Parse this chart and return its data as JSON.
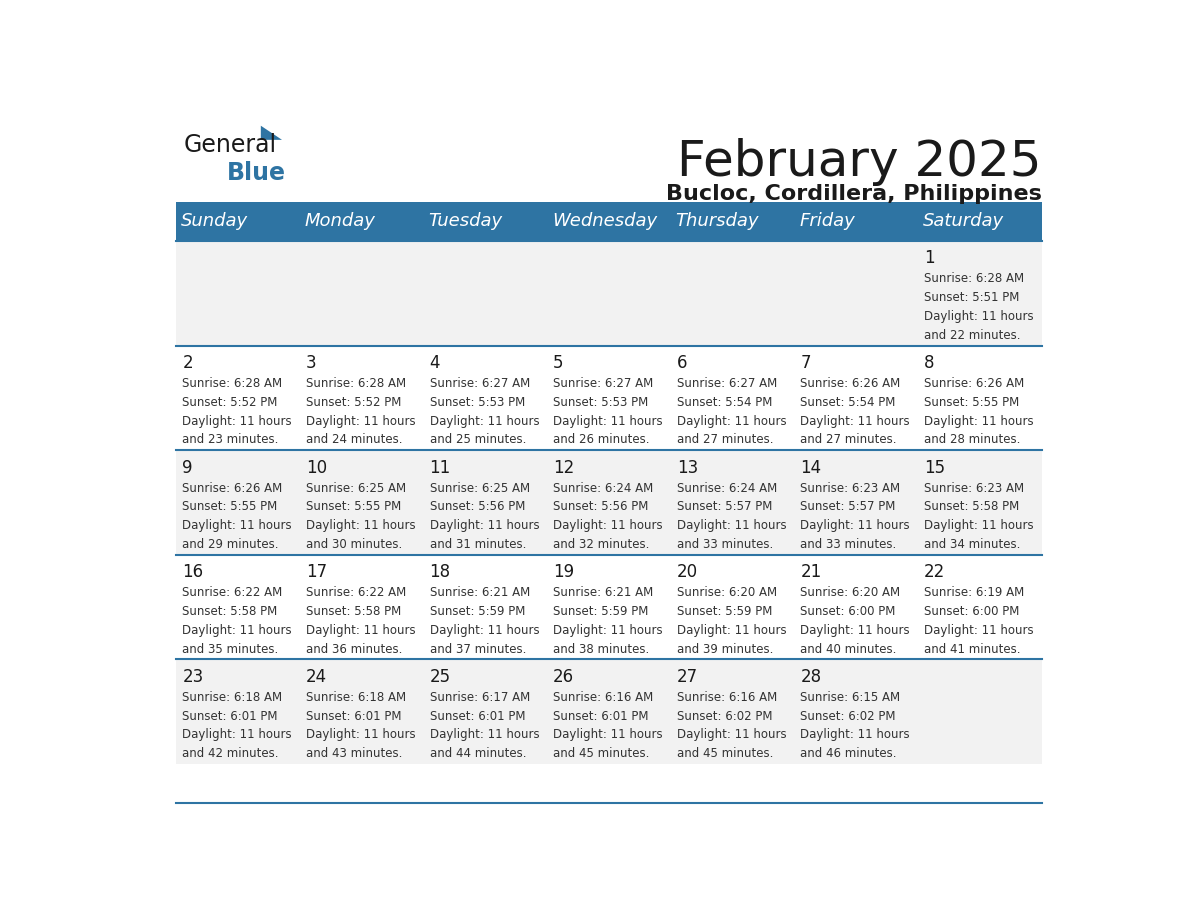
{
  "title": "February 2025",
  "subtitle": "Bucloc, Cordillera, Philippines",
  "header_bg": "#2E74A3",
  "header_text": "#FFFFFF",
  "row_bg1": "#FFFFFF",
  "row_bg2": "#F2F2F2",
  "border_color": "#2E74A3",
  "day_names": [
    "Sunday",
    "Monday",
    "Tuesday",
    "Wednesday",
    "Thursday",
    "Friday",
    "Saturday"
  ],
  "days": [
    {
      "day": 1,
      "col": 6,
      "row": 0,
      "sunrise": "6:28 AM",
      "sunset": "5:51 PM",
      "daylight": "11 hours and 22 minutes."
    },
    {
      "day": 2,
      "col": 0,
      "row": 1,
      "sunrise": "6:28 AM",
      "sunset": "5:52 PM",
      "daylight": "11 hours and 23 minutes."
    },
    {
      "day": 3,
      "col": 1,
      "row": 1,
      "sunrise": "6:28 AM",
      "sunset": "5:52 PM",
      "daylight": "11 hours and 24 minutes."
    },
    {
      "day": 4,
      "col": 2,
      "row": 1,
      "sunrise": "6:27 AM",
      "sunset": "5:53 PM",
      "daylight": "11 hours and 25 minutes."
    },
    {
      "day": 5,
      "col": 3,
      "row": 1,
      "sunrise": "6:27 AM",
      "sunset": "5:53 PM",
      "daylight": "11 hours and 26 minutes."
    },
    {
      "day": 6,
      "col": 4,
      "row": 1,
      "sunrise": "6:27 AM",
      "sunset": "5:54 PM",
      "daylight": "11 hours and 27 minutes."
    },
    {
      "day": 7,
      "col": 5,
      "row": 1,
      "sunrise": "6:26 AM",
      "sunset": "5:54 PM",
      "daylight": "11 hours and 27 minutes."
    },
    {
      "day": 8,
      "col": 6,
      "row": 1,
      "sunrise": "6:26 AM",
      "sunset": "5:55 PM",
      "daylight": "11 hours and 28 minutes."
    },
    {
      "day": 9,
      "col": 0,
      "row": 2,
      "sunrise": "6:26 AM",
      "sunset": "5:55 PM",
      "daylight": "11 hours and 29 minutes."
    },
    {
      "day": 10,
      "col": 1,
      "row": 2,
      "sunrise": "6:25 AM",
      "sunset": "5:55 PM",
      "daylight": "11 hours and 30 minutes."
    },
    {
      "day": 11,
      "col": 2,
      "row": 2,
      "sunrise": "6:25 AM",
      "sunset": "5:56 PM",
      "daylight": "11 hours and 31 minutes."
    },
    {
      "day": 12,
      "col": 3,
      "row": 2,
      "sunrise": "6:24 AM",
      "sunset": "5:56 PM",
      "daylight": "11 hours and 32 minutes."
    },
    {
      "day": 13,
      "col": 4,
      "row": 2,
      "sunrise": "6:24 AM",
      "sunset": "5:57 PM",
      "daylight": "11 hours and 33 minutes."
    },
    {
      "day": 14,
      "col": 5,
      "row": 2,
      "sunrise": "6:23 AM",
      "sunset": "5:57 PM",
      "daylight": "11 hours and 33 minutes."
    },
    {
      "day": 15,
      "col": 6,
      "row": 2,
      "sunrise": "6:23 AM",
      "sunset": "5:58 PM",
      "daylight": "11 hours and 34 minutes."
    },
    {
      "day": 16,
      "col": 0,
      "row": 3,
      "sunrise": "6:22 AM",
      "sunset": "5:58 PM",
      "daylight": "11 hours and 35 minutes."
    },
    {
      "day": 17,
      "col": 1,
      "row": 3,
      "sunrise": "6:22 AM",
      "sunset": "5:58 PM",
      "daylight": "11 hours and 36 minutes."
    },
    {
      "day": 18,
      "col": 2,
      "row": 3,
      "sunrise": "6:21 AM",
      "sunset": "5:59 PM",
      "daylight": "11 hours and 37 minutes."
    },
    {
      "day": 19,
      "col": 3,
      "row": 3,
      "sunrise": "6:21 AM",
      "sunset": "5:59 PM",
      "daylight": "11 hours and 38 minutes."
    },
    {
      "day": 20,
      "col": 4,
      "row": 3,
      "sunrise": "6:20 AM",
      "sunset": "5:59 PM",
      "daylight": "11 hours and 39 minutes."
    },
    {
      "day": 21,
      "col": 5,
      "row": 3,
      "sunrise": "6:20 AM",
      "sunset": "6:00 PM",
      "daylight": "11 hours and 40 minutes."
    },
    {
      "day": 22,
      "col": 6,
      "row": 3,
      "sunrise": "6:19 AM",
      "sunset": "6:00 PM",
      "daylight": "11 hours and 41 minutes."
    },
    {
      "day": 23,
      "col": 0,
      "row": 4,
      "sunrise": "6:18 AM",
      "sunset": "6:01 PM",
      "daylight": "11 hours and 42 minutes."
    },
    {
      "day": 24,
      "col": 1,
      "row": 4,
      "sunrise": "6:18 AM",
      "sunset": "6:01 PM",
      "daylight": "11 hours and 43 minutes."
    },
    {
      "day": 25,
      "col": 2,
      "row": 4,
      "sunrise": "6:17 AM",
      "sunset": "6:01 PM",
      "daylight": "11 hours and 44 minutes."
    },
    {
      "day": 26,
      "col": 3,
      "row": 4,
      "sunrise": "6:16 AM",
      "sunset": "6:01 PM",
      "daylight": "11 hours and 45 minutes."
    },
    {
      "day": 27,
      "col": 4,
      "row": 4,
      "sunrise": "6:16 AM",
      "sunset": "6:02 PM",
      "daylight": "11 hours and 45 minutes."
    },
    {
      "day": 28,
      "col": 5,
      "row": 4,
      "sunrise": "6:15 AM",
      "sunset": "6:02 PM",
      "daylight": "11 hours and 46 minutes."
    }
  ],
  "num_rows": 5,
  "num_cols": 7,
  "title_fontsize": 36,
  "subtitle_fontsize": 16,
  "header_fontsize": 13,
  "day_num_fontsize": 12,
  "cell_text_fontsize": 8.5,
  "logo_general_color": "#1a1a1a",
  "logo_blue_color": "#2E74A3"
}
